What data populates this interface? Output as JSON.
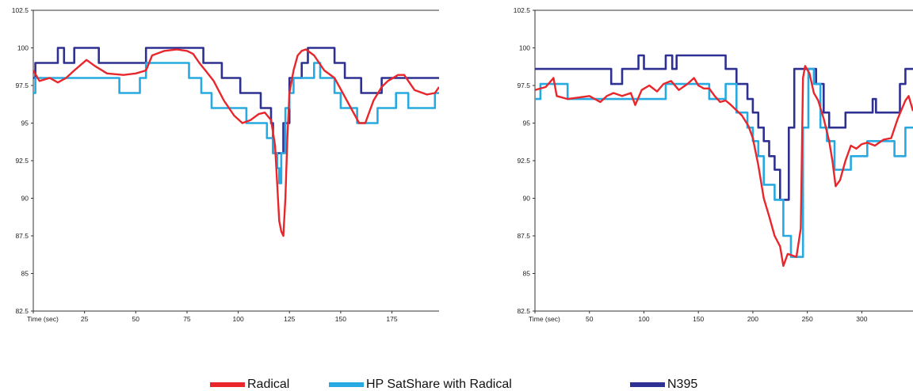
{
  "chart_data": [
    {
      "type": "line",
      "xlabel": "Time (sec)",
      "xlim": [
        0,
        198
      ],
      "ylim": [
        82.5,
        102.5
      ],
      "yticks": [
        "82.5",
        "85",
        "87.5",
        "90",
        "92.5",
        "95",
        "97.5",
        "100",
        "102.5"
      ],
      "xticks": [
        {
          "value": 0,
          "label": "Time (sec)"
        },
        {
          "value": 25,
          "label": "25"
        },
        {
          "value": 50,
          "label": "50"
        },
        {
          "value": 75,
          "label": "75"
        },
        {
          "value": 100,
          "label": "100"
        },
        {
          "value": 125,
          "label": "125"
        },
        {
          "value": 150,
          "label": "150"
        },
        {
          "value": 175,
          "label": "175"
        }
      ],
      "grid": false,
      "series": [
        {
          "name": "N395",
          "color": "#2e3192",
          "step": true,
          "points": [
            [
              0,
              98
            ],
            [
              1,
              99
            ],
            [
              12,
              100
            ],
            [
              15,
              99
            ],
            [
              20,
              100
            ],
            [
              32,
              99
            ],
            [
              55,
              100
            ],
            [
              83,
              99
            ],
            [
              92,
              98
            ],
            [
              101,
              97
            ],
            [
              111,
              96
            ],
            [
              116,
              95
            ],
            [
              117,
              93
            ],
            [
              122,
              95
            ],
            [
              125,
              98
            ],
            [
              131,
              99
            ],
            [
              134,
              100
            ],
            [
              147,
              99
            ],
            [
              152,
              98
            ],
            [
              160,
              97
            ],
            [
              170,
              98
            ],
            [
              198,
              98
            ]
          ]
        },
        {
          "name": "HP SatShare with Radical",
          "color": "#27aae1",
          "step": true,
          "points": [
            [
              0,
              97
            ],
            [
              1,
              98
            ],
            [
              42,
              97
            ],
            [
              52,
              98
            ],
            [
              55,
              99
            ],
            [
              76,
              98
            ],
            [
              82,
              97
            ],
            [
              87,
              96
            ],
            [
              104,
              95
            ],
            [
              111,
              95
            ],
            [
              114,
              94
            ],
            [
              117,
              93
            ],
            [
              119,
              92
            ],
            [
              120,
              91
            ],
            [
              121,
              93
            ],
            [
              123,
              96
            ],
            [
              125,
              97
            ],
            [
              127,
              98
            ],
            [
              137,
              99
            ],
            [
              140,
              98
            ],
            [
              147,
              97
            ],
            [
              150,
              96
            ],
            [
              158,
              95
            ],
            [
              168,
              96
            ],
            [
              177,
              97
            ],
            [
              183,
              96
            ],
            [
              196,
              97
            ],
            [
              198,
              97
            ]
          ]
        },
        {
          "name": "Radical",
          "color": "#e8262b",
          "step": false,
          "points": [
            [
              0,
              98.5
            ],
            [
              3,
              97.8
            ],
            [
              8,
              98
            ],
            [
              12,
              97.7
            ],
            [
              16,
              98
            ],
            [
              20,
              98.5
            ],
            [
              26,
              99.2
            ],
            [
              30,
              98.8
            ],
            [
              36,
              98.3
            ],
            [
              44,
              98.2
            ],
            [
              50,
              98.3
            ],
            [
              55,
              98.5
            ],
            [
              58,
              99.5
            ],
            [
              64,
              99.8
            ],
            [
              70,
              99.9
            ],
            [
              75,
              99.8
            ],
            [
              78,
              99.6
            ],
            [
              81,
              99
            ],
            [
              84,
              98.5
            ],
            [
              88,
              97.8
            ],
            [
              93,
              96.5
            ],
            [
              98,
              95.5
            ],
            [
              102,
              95
            ],
            [
              106,
              95.2
            ],
            [
              110,
              95.6
            ],
            [
              113,
              95.7
            ],
            [
              116,
              95.2
            ],
            [
              118,
              93.5
            ],
            [
              119,
              91
            ],
            [
              120,
              88.5
            ],
            [
              121,
              87.8
            ],
            [
              122,
              87.5
            ],
            [
              123,
              90
            ],
            [
              124,
              94
            ],
            [
              125,
              97
            ],
            [
              127,
              98.5
            ],
            [
              129,
              99.5
            ],
            [
              131,
              99.8
            ],
            [
              133,
              99.9
            ],
            [
              137,
              99.5
            ],
            [
              142,
              98.5
            ],
            [
              147,
              98
            ],
            [
              151,
              97
            ],
            [
              155,
              96
            ],
            [
              159,
              95
            ],
            [
              162,
              95
            ],
            [
              166,
              96.5
            ],
            [
              170,
              97.4
            ],
            [
              173,
              97.8
            ],
            [
              178,
              98.2
            ],
            [
              181,
              98.2
            ],
            [
              186,
              97.2
            ],
            [
              192,
              96.9
            ],
            [
              196,
              97
            ],
            [
              198,
              97.4
            ]
          ]
        }
      ]
    },
    {
      "type": "line",
      "xlabel": "Time (sec)",
      "xlim": [
        0,
        347
      ],
      "ylim": [
        82.5,
        102.5
      ],
      "yticks": [
        "82.5",
        "85",
        "87.5",
        "90",
        "92.5",
        "95",
        "97.5",
        "100",
        "102.5"
      ],
      "xticks": [
        {
          "value": 0,
          "label": "Time (sec)"
        },
        {
          "value": 50,
          "label": "50"
        },
        {
          "value": 100,
          "label": "100"
        },
        {
          "value": 150,
          "label": "150"
        },
        {
          "value": 200,
          "label": "200"
        },
        {
          "value": 250,
          "label": "250"
        },
        {
          "value": 300,
          "label": "300"
        }
      ],
      "grid": false,
      "series": [
        {
          "name": "N395",
          "color": "#2e3192",
          "step": true,
          "points": [
            [
              0,
              98.6
            ],
            [
              70,
              97.6
            ],
            [
              80,
              98.6
            ],
            [
              95,
              99.5
            ],
            [
              100,
              98.6
            ],
            [
              120,
              99.5
            ],
            [
              126,
              98.6
            ],
            [
              130,
              99.5
            ],
            [
              175,
              98.6
            ],
            [
              185,
              97.6
            ],
            [
              195,
              96.6
            ],
            [
              200,
              95.7
            ],
            [
              205,
              94.7
            ],
            [
              210,
              93.8
            ],
            [
              215,
              92.8
            ],
            [
              220,
              91.9
            ],
            [
              225,
              89.9
            ],
            [
              233,
              94.7
            ],
            [
              238,
              98.6
            ],
            [
              258,
              97.6
            ],
            [
              265,
              95.7
            ],
            [
              270,
              94.7
            ],
            [
              285,
              95.7
            ],
            [
              310,
              96.6
            ],
            [
              313,
              95.7
            ],
            [
              335,
              97.6
            ],
            [
              340,
              98.6
            ],
            [
              347,
              98.6
            ]
          ]
        },
        {
          "name": "HP SatShare with Radical",
          "color": "#27aae1",
          "step": true,
          "points": [
            [
              0,
              96.6
            ],
            [
              5,
              97.6
            ],
            [
              30,
              96.6
            ],
            [
              120,
              97.6
            ],
            [
              160,
              96.6
            ],
            [
              175,
              97.6
            ],
            [
              185,
              95.7
            ],
            [
              195,
              94.7
            ],
            [
              200,
              93.8
            ],
            [
              205,
              92.8
            ],
            [
              210,
              90.9
            ],
            [
              220,
              89.9
            ],
            [
              228,
              87.5
            ],
            [
              235,
              86.1
            ],
            [
              246,
              94.7
            ],
            [
              251,
              98.6
            ],
            [
              256,
              97.6
            ],
            [
              262,
              94.7
            ],
            [
              268,
              93.8
            ],
            [
              275,
              91.9
            ],
            [
              290,
              92.8
            ],
            [
              305,
              93.8
            ],
            [
              320,
              93.8
            ],
            [
              330,
              92.8
            ],
            [
              340,
              94.7
            ],
            [
              347,
              94.7
            ]
          ]
        },
        {
          "name": "Radical",
          "color": "#e8262b",
          "step": false,
          "points": [
            [
              0,
              97.2
            ],
            [
              10,
              97.4
            ],
            [
              17,
              98
            ],
            [
              20,
              96.8
            ],
            [
              30,
              96.6
            ],
            [
              40,
              96.7
            ],
            [
              50,
              96.8
            ],
            [
              60,
              96.4
            ],
            [
              66,
              96.8
            ],
            [
              72,
              97
            ],
            [
              80,
              96.8
            ],
            [
              88,
              97
            ],
            [
              92,
              96.2
            ],
            [
              98,
              97.2
            ],
            [
              105,
              97.5
            ],
            [
              112,
              97.1
            ],
            [
              118,
              97.6
            ],
            [
              125,
              97.8
            ],
            [
              132,
              97.2
            ],
            [
              140,
              97.6
            ],
            [
              146,
              98
            ],
            [
              150,
              97.5
            ],
            [
              155,
              97.3
            ],
            [
              160,
              97.3
            ],
            [
              165,
              96.8
            ],
            [
              170,
              96.4
            ],
            [
              175,
              96.5
            ],
            [
              180,
              96.2
            ],
            [
              190,
              95.5
            ],
            [
              196,
              94.8
            ],
            [
              200,
              94
            ],
            [
              205,
              92.2
            ],
            [
              210,
              90
            ],
            [
              215,
              88.8
            ],
            [
              220,
              87.5
            ],
            [
              225,
              86.8
            ],
            [
              228,
              85.5
            ],
            [
              232,
              86.3
            ],
            [
              240,
              86.1
            ],
            [
              244,
              88
            ],
            [
              246,
              98
            ],
            [
              248,
              98.8
            ],
            [
              252,
              98.3
            ],
            [
              256,
              97
            ],
            [
              260,
              96.5
            ],
            [
              265,
              95.3
            ],
            [
              270,
              93.8
            ],
            [
              273,
              92.5
            ],
            [
              276,
              90.8
            ],
            [
              280,
              91.2
            ],
            [
              285,
              92.5
            ],
            [
              290,
              93.5
            ],
            [
              295,
              93.3
            ],
            [
              300,
              93.6
            ],
            [
              305,
              93.7
            ],
            [
              312,
              93.5
            ],
            [
              320,
              93.9
            ],
            [
              327,
              94
            ],
            [
              333,
              95.3
            ],
            [
              340,
              96.5
            ],
            [
              343,
              96.8
            ],
            [
              347,
              95.8
            ]
          ]
        }
      ]
    }
  ],
  "legend": [
    {
      "name": "Radical",
      "color": "#e8262b"
    },
    {
      "name": "HP SatShare with Radical",
      "color": "#27aae1"
    },
    {
      "name": "N395",
      "color": "#2e3192"
    }
  ]
}
